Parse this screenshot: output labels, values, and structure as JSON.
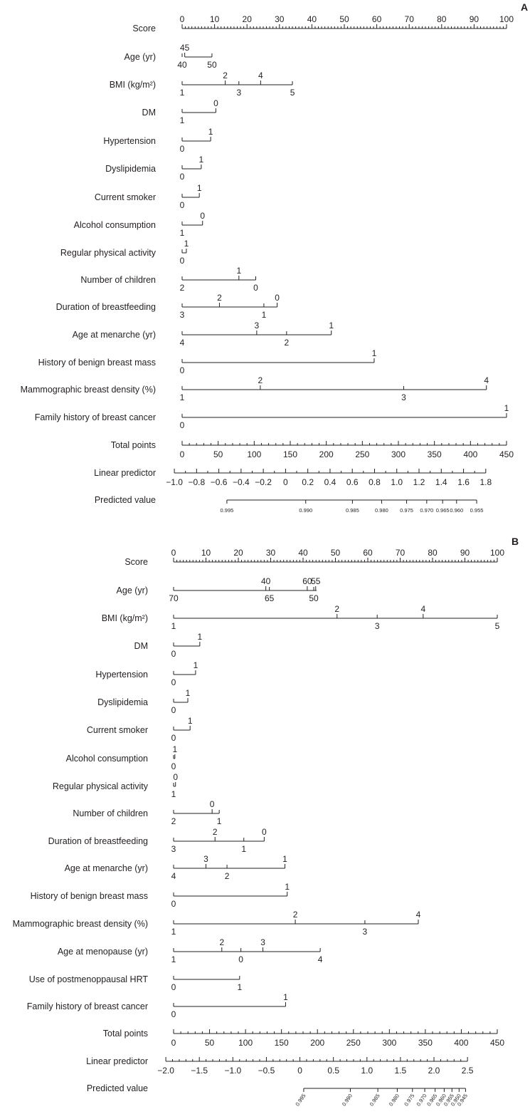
{
  "chart_data": [
    {
      "type": "nomogram",
      "panel": "A",
      "score_ticks": [
        "0",
        "10",
        "20",
        "30",
        "40",
        "50",
        "60",
        "70",
        "80",
        "90",
        "100"
      ],
      "rows": [
        {
          "label": "Score",
          "kind": "points_scale",
          "min": 0,
          "max": 100,
          "labeled": [
            0,
            10,
            20,
            30,
            40,
            50,
            60,
            70,
            80,
            90,
            100
          ],
          "minor": 1
        },
        {
          "label": "Age (yr)",
          "kind": "variable",
          "range": [
            0.8,
            9.2
          ],
          "above": [
            {
              "v": 0.8,
              "t": "45"
            }
          ],
          "below": [
            {
              "v": 0,
              "t": "40"
            },
            {
              "v": 9.2,
              "t": "50"
            }
          ]
        },
        {
          "label": "BMI (kg/m²)",
          "kind": "variable",
          "range": [
            0,
            34.0
          ],
          "above": [
            {
              "v": 13.3,
              "t": "2"
            },
            {
              "v": 24.2,
              "t": "4"
            }
          ],
          "below": [
            {
              "v": 0,
              "t": "1"
            },
            {
              "v": 17.5,
              "t": "3"
            },
            {
              "v": 34.0,
              "t": "5"
            }
          ]
        },
        {
          "label": "DM",
          "kind": "variable",
          "range": [
            0,
            10.4
          ],
          "above": [
            {
              "v": 10.4,
              "t": "0"
            }
          ],
          "below": [
            {
              "v": 0,
              "t": "1"
            }
          ]
        },
        {
          "label": "Hypertension",
          "kind": "variable",
          "range": [
            0,
            8.8
          ],
          "above": [
            {
              "v": 8.8,
              "t": "1"
            }
          ],
          "below": [
            {
              "v": 0,
              "t": "0"
            }
          ]
        },
        {
          "label": "Dyslipidemia",
          "kind": "variable",
          "range": [
            0,
            5.9
          ],
          "above": [
            {
              "v": 5.9,
              "t": "1"
            }
          ],
          "below": [
            {
              "v": 0,
              "t": "0"
            }
          ]
        },
        {
          "label": "Current smoker",
          "kind": "variable",
          "range": [
            0,
            5.3
          ],
          "above": [
            {
              "v": 5.3,
              "t": "1"
            }
          ],
          "below": [
            {
              "v": 0,
              "t": "0"
            }
          ]
        },
        {
          "label": "Alcohol consumption",
          "kind": "variable",
          "range": [
            0,
            6.3
          ],
          "above": [
            {
              "v": 6.3,
              "t": "0"
            }
          ],
          "below": [
            {
              "v": 0,
              "t": "1"
            }
          ]
        },
        {
          "label": "Regular physical activity",
          "kind": "variable",
          "range": [
            0,
            1.3
          ],
          "above": [
            {
              "v": 1.3,
              "t": "1"
            }
          ],
          "below": [
            {
              "v": 0,
              "t": "0"
            }
          ]
        },
        {
          "label": "Number of children",
          "kind": "variable",
          "range": [
            0,
            22.7
          ],
          "above": [
            {
              "v": 17.5,
              "t": "1"
            }
          ],
          "below": [
            {
              "v": 0,
              "t": "2"
            },
            {
              "v": 22.7,
              "t": "0"
            }
          ]
        },
        {
          "label": "Duration of breastfeeding",
          "kind": "variable",
          "range": [
            0,
            29.3
          ],
          "above": [
            {
              "v": 11.5,
              "t": "2"
            },
            {
              "v": 29.3,
              "t": "0"
            }
          ],
          "below": [
            {
              "v": 0,
              "t": "3"
            },
            {
              "v": 25.2,
              "t": "1"
            }
          ]
        },
        {
          "label": "Age at menarche (yr)",
          "kind": "variable",
          "range": [
            0,
            46.0
          ],
          "above": [
            {
              "v": 23.0,
              "t": "3"
            },
            {
              "v": 46.0,
              "t": "1"
            }
          ],
          "below": [
            {
              "v": 0,
              "t": "4"
            },
            {
              "v": 32.2,
              "t": "2"
            }
          ]
        },
        {
          "label": "History of benign breast mass",
          "kind": "variable",
          "range": [
            0,
            59.2
          ],
          "above": [
            {
              "v": 59.2,
              "t": "1"
            }
          ],
          "below": [
            {
              "v": 0,
              "t": "0"
            }
          ]
        },
        {
          "label": "Mammographic breast density (%)",
          "kind": "variable",
          "range": [
            0,
            93.8
          ],
          "above": [
            {
              "v": 24.1,
              "t": "2"
            },
            {
              "v": 93.8,
              "t": "4"
            }
          ],
          "below": [
            {
              "v": 0,
              "t": "1"
            },
            {
              "v": 68.3,
              "t": "3"
            }
          ]
        },
        {
          "label": "Family history of breast cancer",
          "kind": "variable",
          "range": [
            0,
            100
          ],
          "above": [
            {
              "v": 100,
              "t": "1"
            }
          ],
          "below": [
            {
              "v": 0,
              "t": "0"
            }
          ]
        },
        {
          "label": "Total points",
          "kind": "scale",
          "min": 0,
          "max": 450,
          "x0": 0,
          "x1": 100,
          "labeled": [
            0,
            50,
            100,
            150,
            200,
            250,
            300,
            350,
            400,
            450
          ],
          "minor": 10,
          "text_below": true
        },
        {
          "label": "Linear predictor",
          "kind": "scale",
          "min": -1.0,
          "max": 1.8,
          "x0": -2.4,
          "x1": 93.6,
          "labeled": [
            -1.0,
            -0.8,
            -0.6,
            -0.4,
            -0.2,
            0,
            0.2,
            0.4,
            0.6,
            0.8,
            1.0,
            1.2,
            1.4,
            1.6,
            1.8
          ],
          "minor": 0.1,
          "tick_text": [
            "−1.0",
            "−0.8",
            "−0.6",
            "−0.4",
            "−0.2",
            "0",
            "0.2",
            "0.4",
            "0.6",
            "0.8",
            "1.0",
            "1.2",
            "1.4",
            "1.6",
            "1.8"
          ],
          "text_below": true
        },
        {
          "label": "Predicted value",
          "kind": "points",
          "pv": true,
          "ticks": [
            {
              "v": 13.8,
              "t": "0.995"
            },
            {
              "v": 38.1,
              "t": "0.990"
            },
            {
              "v": 52.5,
              "t": "0.985"
            },
            {
              "v": 61.5,
              "t": "0.980"
            },
            {
              "v": 69.2,
              "t": "0.975"
            },
            {
              "v": 75.4,
              "t": "0.970"
            },
            {
              "v": 80.3,
              "t": "0.965"
            },
            {
              "v": 84.6,
              "t": "0.960"
            },
            {
              "v": 90.8,
              "t": "0.955"
            }
          ]
        }
      ]
    },
    {
      "type": "nomogram",
      "panel": "B",
      "score_ticks": [
        "0",
        "10",
        "20",
        "30",
        "40",
        "50",
        "60",
        "70",
        "80",
        "90",
        "100"
      ],
      "rows": [
        {
          "label": "Score",
          "kind": "points_scale",
          "min": 0,
          "max": 100,
          "labeled": [
            0,
            10,
            20,
            30,
            40,
            50,
            60,
            70,
            80,
            90,
            100
          ],
          "minor": 1
        },
        {
          "label": "Age (yr)",
          "kind": "variable",
          "range": [
            0,
            44.2
          ],
          "above": [
            {
              "v": 28.5,
              "t": "40"
            },
            {
              "v": 41.3,
              "t": "60"
            },
            {
              "v": 43.9,
              "t": "55"
            }
          ],
          "below": [
            {
              "v": 0,
              "t": "70"
            },
            {
              "v": 29.6,
              "t": "65"
            },
            {
              "v": 43.3,
              "t": "50"
            }
          ]
        },
        {
          "label": "BMI (kg/m²)",
          "kind": "variable",
          "range": [
            0,
            100
          ],
          "above": [
            {
              "v": 50.5,
              "t": "2"
            },
            {
              "v": 77.1,
              "t": "4"
            }
          ],
          "below": [
            {
              "v": 0,
              "t": "1"
            },
            {
              "v": 62.9,
              "t": "3"
            },
            {
              "v": 100,
              "t": "5"
            }
          ]
        },
        {
          "label": "DM",
          "kind": "variable",
          "range": [
            0,
            8.1
          ],
          "above": [
            {
              "v": 8.1,
              "t": "1"
            }
          ],
          "below": [
            {
              "v": 0,
              "t": "0"
            }
          ]
        },
        {
          "label": "Hypertension",
          "kind": "variable",
          "range": [
            0,
            6.8
          ],
          "above": [
            {
              "v": 6.8,
              "t": "1"
            }
          ],
          "below": [
            {
              "v": 0,
              "t": "0"
            }
          ]
        },
        {
          "label": "Dyslipidemia",
          "kind": "variable",
          "range": [
            0,
            4.4
          ],
          "above": [
            {
              "v": 4.4,
              "t": "1"
            }
          ],
          "below": [
            {
              "v": 0,
              "t": "0"
            }
          ]
        },
        {
          "label": "Current smoker",
          "kind": "variable",
          "range": [
            0,
            5.1
          ],
          "above": [
            {
              "v": 5.1,
              "t": "1"
            }
          ],
          "below": [
            {
              "v": 0,
              "t": "0"
            }
          ]
        },
        {
          "label": "Alcohol consumption",
          "kind": "variable",
          "range": [
            0,
            0.4
          ],
          "above": [
            {
              "v": 0.4,
              "t": "1"
            }
          ],
          "below": [
            {
              "v": 0,
              "t": "0"
            }
          ]
        },
        {
          "label": "Regular physical activity",
          "kind": "variable",
          "range": [
            0,
            0.6
          ],
          "above": [
            {
              "v": 0.6,
              "t": "0"
            }
          ],
          "below": [
            {
              "v": 0,
              "t": "1"
            }
          ]
        },
        {
          "label": "Number of children",
          "kind": "variable",
          "range": [
            0,
            14.1
          ],
          "above": [
            {
              "v": 11.9,
              "t": "0"
            }
          ],
          "below": [
            {
              "v": 0,
              "t": "2"
            },
            {
              "v": 14.1,
              "t": "1"
            }
          ]
        },
        {
          "label": "Duration of breastfeeding",
          "kind": "variable",
          "range": [
            0,
            28.0
          ],
          "above": [
            {
              "v": 12.8,
              "t": "2"
            },
            {
              "v": 28.0,
              "t": "0"
            }
          ],
          "below": [
            {
              "v": 0,
              "t": "3"
            },
            {
              "v": 21.7,
              "t": "1"
            }
          ]
        },
        {
          "label": "Age at menarche (yr)",
          "kind": "variable",
          "range": [
            0,
            34.4
          ],
          "above": [
            {
              "v": 10.0,
              "t": "3"
            },
            {
              "v": 34.4,
              "t": "1"
            }
          ],
          "below": [
            {
              "v": 0,
              "t": "4"
            },
            {
              "v": 16.5,
              "t": "2"
            }
          ]
        },
        {
          "label": "History of benign breast mass",
          "kind": "variable",
          "range": [
            0,
            35.1
          ],
          "above": [
            {
              "v": 35.1,
              "t": "1"
            }
          ],
          "below": [
            {
              "v": 0,
              "t": "0"
            }
          ]
        },
        {
          "label": "Mammographic breast density (%)",
          "kind": "variable",
          "range": [
            0,
            75.6
          ],
          "above": [
            {
              "v": 37.6,
              "t": "2"
            },
            {
              "v": 75.6,
              "t": "4"
            }
          ],
          "below": [
            {
              "v": 0,
              "t": "1"
            },
            {
              "v": 59.1,
              "t": "3"
            }
          ]
        },
        {
          "label": "Age at menopause (yr)",
          "kind": "variable",
          "range": [
            0,
            45.3
          ],
          "above": [
            {
              "v": 14.9,
              "t": "2"
            },
            {
              "v": 27.6,
              "t": "3"
            }
          ],
          "below": [
            {
              "v": 0,
              "t": "1"
            },
            {
              "v": 20.8,
              "t": "0"
            },
            {
              "v": 45.3,
              "t": "4"
            }
          ]
        },
        {
          "label": "Use of postmenoppausal HRT",
          "kind": "variable",
          "range": [
            0,
            20.4
          ],
          "above": [],
          "below": [
            {
              "v": 0,
              "t": "0"
            },
            {
              "v": 20.4,
              "t": "1"
            }
          ]
        },
        {
          "label": "Family history of breast cancer",
          "kind": "variable",
          "range": [
            0,
            34.6
          ],
          "above": [
            {
              "v": 34.6,
              "t": "1"
            }
          ],
          "below": [
            {
              "v": 0,
              "t": "0"
            }
          ]
        },
        {
          "label": "Total points",
          "kind": "scale",
          "min": 0,
          "max": 450,
          "x0": 0,
          "x1": 100,
          "labeled": [
            0,
            50,
            100,
            150,
            200,
            250,
            300,
            350,
            400,
            450
          ],
          "minor": 10,
          "text_below": true
        },
        {
          "label": "Linear predictor",
          "kind": "scale",
          "min": -2.0,
          "max": 2.5,
          "x0": -2.4,
          "x1": 90.8,
          "labeled": [
            -2.0,
            -1.5,
            -1.0,
            -0.5,
            0,
            0.5,
            1.0,
            1.5,
            2.0,
            2.5
          ],
          "minor": 0.1,
          "tick_text": [
            "−2.0",
            "−1.5",
            "−1.0",
            "−0.5",
            "0",
            "0.5",
            "1.0",
            "1.5",
            "2.0",
            "2.5"
          ],
          "text_below": true
        },
        {
          "label": "Predicted value",
          "kind": "points",
          "pv": true,
          "rotate": true,
          "ticks": [
            {
              "v": 40.2,
              "t": "0.995"
            },
            {
              "v": 54.6,
              "t": "0.990"
            },
            {
              "v": 63.1,
              "t": "0.985"
            },
            {
              "v": 69.1,
              "t": "0.980"
            },
            {
              "v": 73.8,
              "t": "0.975"
            },
            {
              "v": 77.6,
              "t": "0.970"
            },
            {
              "v": 80.8,
              "t": "0.965"
            },
            {
              "v": 83.6,
              "t": "0.960"
            },
            {
              "v": 86.0,
              "t": "0.955"
            },
            {
              "v": 88.2,
              "t": "0.950"
            },
            {
              "v": 90.2,
              "t": "0.945"
            }
          ]
        }
      ]
    }
  ]
}
